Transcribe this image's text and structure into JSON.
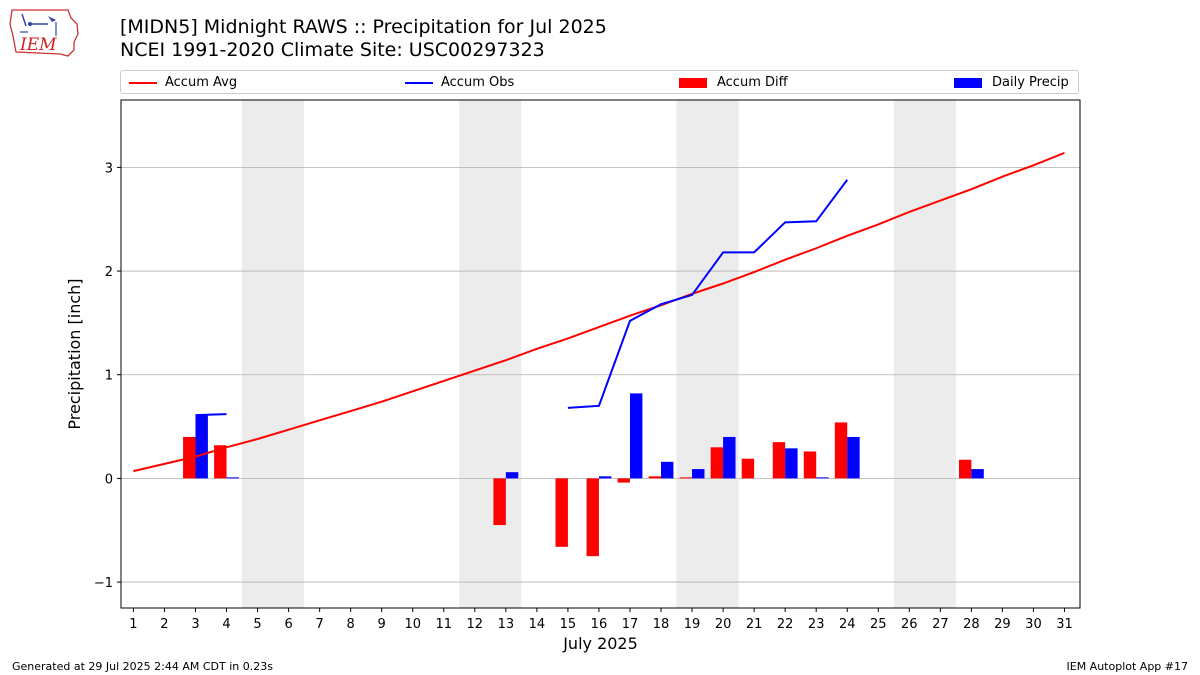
{
  "title": {
    "line1": "[MIDN5] Midnight RAWS :: Precipitation for Jul 2025",
    "line2": "NCEI 1991-2020 Climate Site: USC00297323"
  },
  "logo": {
    "text": "IEM"
  },
  "footer": {
    "left": "Generated at 29 Jul 2025 2:44 AM CDT in 0.23s",
    "right": "IEM Autoplot App #17"
  },
  "colors": {
    "avg": "#ff0000",
    "obs": "#0000ff",
    "diff": "#ff0000",
    "daily": "#0000ff",
    "weekend": "#ececec",
    "grid": "#b0b0b0"
  },
  "legend": {
    "items": [
      {
        "label": "Accum Avg",
        "kind": "line",
        "color": "#ff0000"
      },
      {
        "label": "Accum Obs",
        "kind": "line",
        "color": "#0000ff"
      },
      {
        "label": "Accum Diff",
        "kind": "bar",
        "color": "#ff0000"
      },
      {
        "label": "Daily Precip",
        "kind": "bar",
        "color": "#0000ff"
      }
    ]
  },
  "chart_data": {
    "type": "bar",
    "xlabel": "July 2025",
    "ylabel": "Precipitation [inch]",
    "xlim": [
      0.6,
      31.5
    ],
    "ylim": [
      -1.25,
      3.65
    ],
    "yticks": [
      -1,
      0,
      1,
      2,
      3
    ],
    "ytick_labels": [
      "−1",
      "0",
      "1",
      "2",
      "3"
    ],
    "grid": "horizontal",
    "legend_placement": "top",
    "x": [
      1,
      2,
      3,
      4,
      5,
      6,
      7,
      8,
      9,
      10,
      11,
      12,
      13,
      14,
      15,
      16,
      17,
      18,
      19,
      20,
      21,
      22,
      23,
      24,
      25,
      26,
      27,
      28,
      29,
      30,
      31
    ],
    "weekend_spans": [
      [
        4.5,
        6.5
      ],
      [
        11.5,
        13.5
      ],
      [
        18.5,
        20.5
      ],
      [
        25.5,
        27.5
      ]
    ],
    "series": [
      {
        "name": "Accum Avg",
        "kind": "line",
        "x": [
          1,
          2,
          3,
          4,
          5,
          6,
          7,
          8,
          9,
          10,
          11,
          12,
          13,
          14,
          15,
          16,
          17,
          18,
          19,
          20,
          21,
          22,
          23,
          24,
          25,
          26,
          27,
          28,
          29,
          30,
          31
        ],
        "values": [
          0.07,
          0.14,
          0.21,
          0.3,
          0.38,
          0.47,
          0.56,
          0.65,
          0.74,
          0.84,
          0.94,
          1.04,
          1.14,
          1.25,
          1.35,
          1.46,
          1.57,
          1.67,
          1.78,
          1.88,
          1.99,
          2.11,
          2.22,
          2.34,
          2.45,
          2.57,
          2.68,
          2.79,
          2.91,
          3.02,
          3.14
        ]
      },
      {
        "name": "Accum Obs",
        "kind": "line",
        "x": [
          3,
          4,
          15,
          16,
          17,
          18,
          19,
          20,
          21,
          22,
          23,
          24
        ],
        "values": [
          0.61,
          0.62,
          0.68,
          0.7,
          1.52,
          1.68,
          1.77,
          2.18,
          2.18,
          2.47,
          2.48,
          2.88
        ],
        "breaks_after": [
          4
        ]
      },
      {
        "name": "Accum Diff",
        "kind": "bar",
        "x": [
          3,
          4,
          13,
          15,
          16,
          17,
          18,
          19,
          20,
          21,
          22,
          23,
          24,
          28
        ],
        "values": [
          0.4,
          0.32,
          -0.45,
          -0.66,
          -0.75,
          -0.04,
          0.02,
          0.01,
          0.3,
          0.19,
          0.35,
          0.26,
          0.54,
          0.18
        ]
      },
      {
        "name": "Daily Precip",
        "kind": "bar",
        "x": [
          3,
          4,
          13,
          16,
          17,
          18,
          19,
          20,
          22,
          23,
          24,
          28
        ],
        "values": [
          0.61,
          0.01,
          0.06,
          0.02,
          0.82,
          0.16,
          0.09,
          0.4,
          0.29,
          0.01,
          0.4,
          0.09
        ]
      }
    ]
  }
}
